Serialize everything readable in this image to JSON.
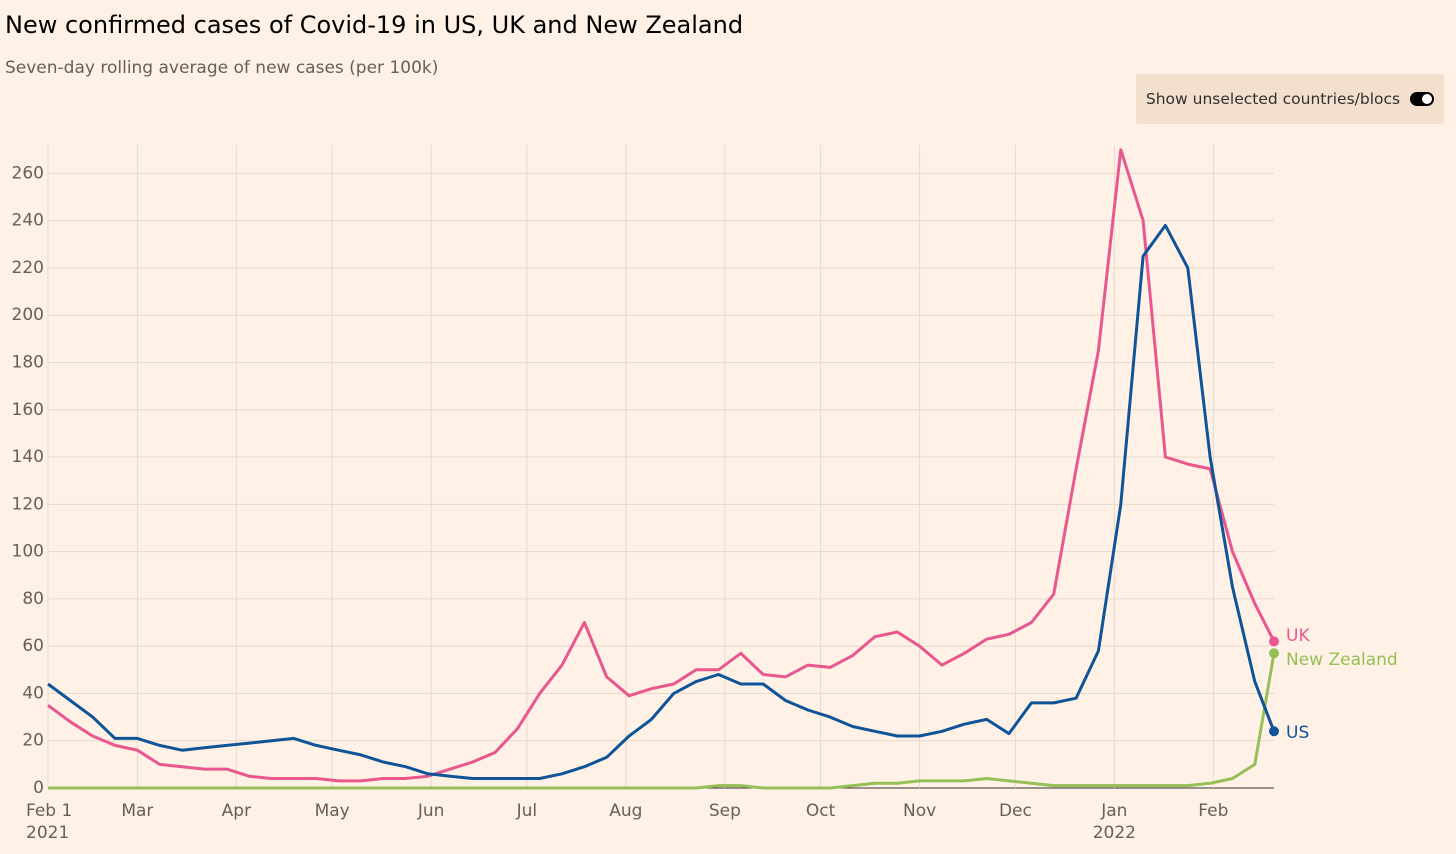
{
  "chart_data": {
    "type": "line",
    "title": "New confirmed cases of Covid-19 in US, UK and New Zealand",
    "subtitle": "Seven-day rolling average of new cases (per 100k)",
    "toggle_label": "Show unselected countries/blocs",
    "x": [
      "2021-02-01",
      "2021-02-08",
      "2021-02-15",
      "2021-02-22",
      "2021-03-01",
      "2021-03-08",
      "2021-03-15",
      "2021-03-22",
      "2021-03-29",
      "2021-04-05",
      "2021-04-12",
      "2021-04-19",
      "2021-04-26",
      "2021-05-03",
      "2021-05-10",
      "2021-05-17",
      "2021-05-24",
      "2021-05-31",
      "2021-06-07",
      "2021-06-14",
      "2021-06-21",
      "2021-06-28",
      "2021-07-05",
      "2021-07-12",
      "2021-07-19",
      "2021-07-26",
      "2021-08-02",
      "2021-08-09",
      "2021-08-16",
      "2021-08-23",
      "2021-08-30",
      "2021-09-06",
      "2021-09-13",
      "2021-09-20",
      "2021-09-27",
      "2021-10-04",
      "2021-10-11",
      "2021-10-18",
      "2021-10-25",
      "2021-11-01",
      "2021-11-08",
      "2021-11-15",
      "2021-11-22",
      "2021-11-29",
      "2021-12-06",
      "2021-12-13",
      "2021-12-20",
      "2021-12-27",
      "2022-01-03",
      "2022-01-10",
      "2022-01-17",
      "2022-01-24",
      "2022-01-31",
      "2022-02-07",
      "2022-02-14",
      "2022-02-20"
    ],
    "series": [
      {
        "name": "UK",
        "color": "#e8588f",
        "values": [
          35,
          28,
          22,
          18,
          16,
          10,
          9,
          8,
          8,
          5,
          4,
          4,
          4,
          3,
          3,
          4,
          4,
          5,
          8,
          11,
          15,
          25,
          40,
          52,
          70,
          47,
          39,
          42,
          44,
          50,
          50,
          57,
          48,
          47,
          52,
          51,
          56,
          64,
          66,
          60,
          52,
          57,
          63,
          65,
          70,
          82,
          135,
          185,
          270,
          240,
          140,
          137,
          135,
          100,
          78,
          62
        ]
      },
      {
        "name": "New Zealand",
        "color": "#96bf55",
        "values": [
          0,
          0,
          0,
          0,
          0,
          0,
          0,
          0,
          0,
          0,
          0,
          0,
          0,
          0,
          0,
          0,
          0,
          0,
          0,
          0,
          0,
          0,
          0,
          0,
          0,
          0,
          0,
          0,
          0,
          0,
          1,
          1,
          0,
          0,
          0,
          0,
          1,
          2,
          2,
          3,
          3,
          3,
          4,
          3,
          2,
          1,
          1,
          1,
          1,
          1,
          1,
          1,
          2,
          4,
          10,
          57
        ]
      },
      {
        "name": "US",
        "color": "#0f5499",
        "values": [
          44,
          37,
          30,
          21,
          21,
          18,
          16,
          17,
          18,
          19,
          20,
          21,
          18,
          16,
          14,
          11,
          9,
          6,
          5,
          4,
          4,
          4,
          4,
          6,
          9,
          13,
          22,
          29,
          40,
          45,
          48,
          44,
          44,
          37,
          33,
          30,
          26,
          24,
          22,
          22,
          24,
          27,
          29,
          23,
          36,
          36,
          38,
          58,
          120,
          225,
          238,
          220,
          140,
          85,
          45,
          24
        ]
      }
    ],
    "xlim": [
      "2021-02-01",
      "2022-02-20"
    ],
    "xticks": [
      {
        "value": "2021-02-01",
        "label": "Feb 1"
      },
      {
        "value": "2021-03-01",
        "label": "Mar"
      },
      {
        "value": "2021-04-01",
        "label": "Apr"
      },
      {
        "value": "2021-05-01",
        "label": "May"
      },
      {
        "value": "2021-06-01",
        "label": "Jun"
      },
      {
        "value": "2021-07-01",
        "label": "Jul"
      },
      {
        "value": "2021-08-01",
        "label": "Aug"
      },
      {
        "value": "2021-09-01",
        "label": "Sep"
      },
      {
        "value": "2021-10-01",
        "label": "Oct"
      },
      {
        "value": "2021-11-01",
        "label": "Nov"
      },
      {
        "value": "2021-12-01",
        "label": "Dec"
      },
      {
        "value": "2022-01-01",
        "label": "Jan"
      },
      {
        "value": "2022-02-01",
        "label": "Feb"
      }
    ],
    "year_labels": [
      {
        "value": "2021-02-01",
        "label": "2021"
      },
      {
        "value": "2022-01-01",
        "label": "2022"
      }
    ],
    "ylim": [
      0,
      272
    ],
    "yticks": [
      0,
      20,
      40,
      60,
      80,
      100,
      120,
      140,
      160,
      180,
      200,
      220,
      240,
      260
    ],
    "grid": true
  }
}
